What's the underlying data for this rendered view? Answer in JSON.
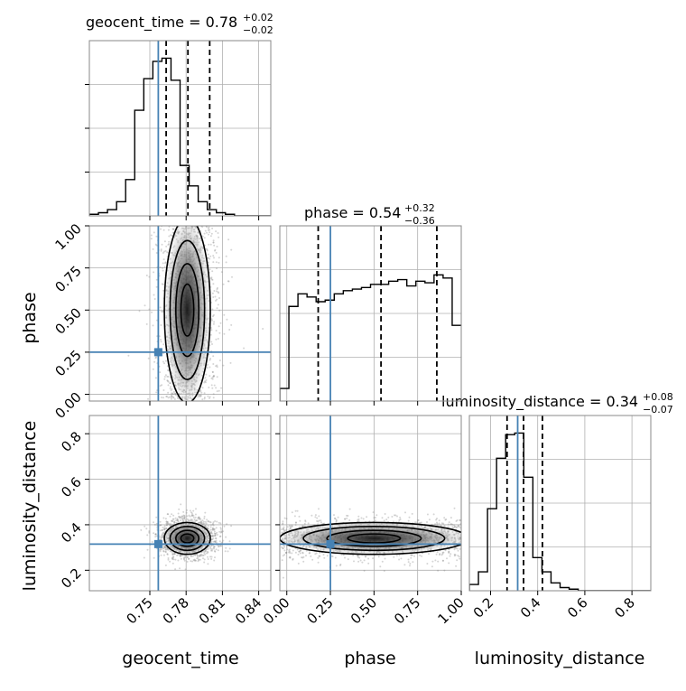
{
  "chart_data": {
    "type": "corner",
    "truth_color": "#4682b4",
    "parameters": [
      "geocent_time",
      "phase",
      "luminosity_distance"
    ],
    "truth": {
      "geocent_time": 0.757,
      "phase": 0.25,
      "luminosity_distance": 0.315
    },
    "titles": {
      "geocent_time": {
        "name": "geocent_time",
        "median": "0.78",
        "plus": "+0.02",
        "minus": "−0.02"
      },
      "phase": {
        "name": "phase",
        "median": "0.54",
        "plus": "+0.32",
        "minus": "−0.36"
      },
      "luminosity_distance": {
        "name": "luminosity_distance",
        "median": "0.34",
        "plus": "+0.08",
        "minus": "−0.07"
      }
    },
    "xlabels": [
      "geocent_time",
      "phase",
      "luminosity_distance"
    ],
    "ylabels": [
      "",
      "phase",
      "luminosity_distance"
    ],
    "ranges": {
      "geocent_time": [
        0.7,
        0.85
      ],
      "phase": [
        -0.04,
        1.0
      ],
      "luminosity_distance": [
        0.11,
        0.88
      ]
    },
    "ticks": {
      "geocent_time": {
        "values": [
          0.75,
          0.78,
          0.81,
          0.84
        ],
        "labels": [
          "0.75",
          "0.78",
          "0.81",
          "0.84"
        ]
      },
      "phase": {
        "values": [
          0.0,
          0.25,
          0.5,
          0.75,
          1.0
        ],
        "labels": [
          "0.00",
          "0.25",
          "0.50",
          "0.75",
          "1.00"
        ]
      },
      "luminosity_distance": {
        "values": [
          0.2,
          0.4,
          0.6,
          0.8
        ],
        "labels": [
          "0.2",
          "0.4",
          "0.6",
          "0.8"
        ]
      }
    },
    "quantiles": {
      "geocent_time": [
        0.7635,
        0.7815,
        0.7995
      ],
      "phase": [
        0.18,
        0.54,
        0.86
      ],
      "luminosity_distance": [
        0.27,
        0.34,
        0.42
      ]
    },
    "histograms": {
      "geocent_time": {
        "edges": [
          0.7,
          0.7075,
          0.715,
          0.7225,
          0.73,
          0.7375,
          0.745,
          0.7525,
          0.76,
          0.7675,
          0.775,
          0.7825,
          0.79,
          0.7975,
          0.805,
          0.8125,
          0.82,
          0.8275,
          0.835,
          0.8425,
          0.85
        ],
        "counts": [
          0.01,
          0.02,
          0.04,
          0.09,
          0.23,
          0.67,
          0.87,
          0.98,
          1.0,
          0.86,
          0.32,
          0.19,
          0.09,
          0.04,
          0.02,
          0.01,
          0.0,
          0.0,
          0.0,
          0.0
        ]
      },
      "phase": {
        "edges": [
          -0.04,
          0.012,
          0.064,
          0.116,
          0.168,
          0.22,
          0.272,
          0.324,
          0.376,
          0.428,
          0.48,
          0.532,
          0.584,
          0.636,
          0.688,
          0.74,
          0.792,
          0.844,
          0.896,
          0.948,
          1.0
        ],
        "counts": [
          0.08,
          0.6,
          0.68,
          0.66,
          0.63,
          0.64,
          0.68,
          0.7,
          0.71,
          0.72,
          0.74,
          0.74,
          0.76,
          0.77,
          0.73,
          0.76,
          0.75,
          0.8,
          0.78,
          0.48
        ]
      },
      "luminosity_distance": {
        "edges": [
          0.11,
          0.1485,
          0.187,
          0.2255,
          0.264,
          0.3025,
          0.341,
          0.3795,
          0.418,
          0.4565,
          0.495,
          0.5335,
          0.572,
          0.6105,
          0.649,
          0.6875,
          0.726,
          0.7645,
          0.803,
          0.8415,
          0.88
        ],
        "counts": [
          0.04,
          0.12,
          0.52,
          0.84,
          0.99,
          1.0,
          0.72,
          0.21,
          0.12,
          0.05,
          0.02,
          0.01,
          0.0,
          0.0,
          0.0,
          0.0,
          0.0,
          0.0,
          0.0,
          0.0
        ]
      }
    }
  }
}
